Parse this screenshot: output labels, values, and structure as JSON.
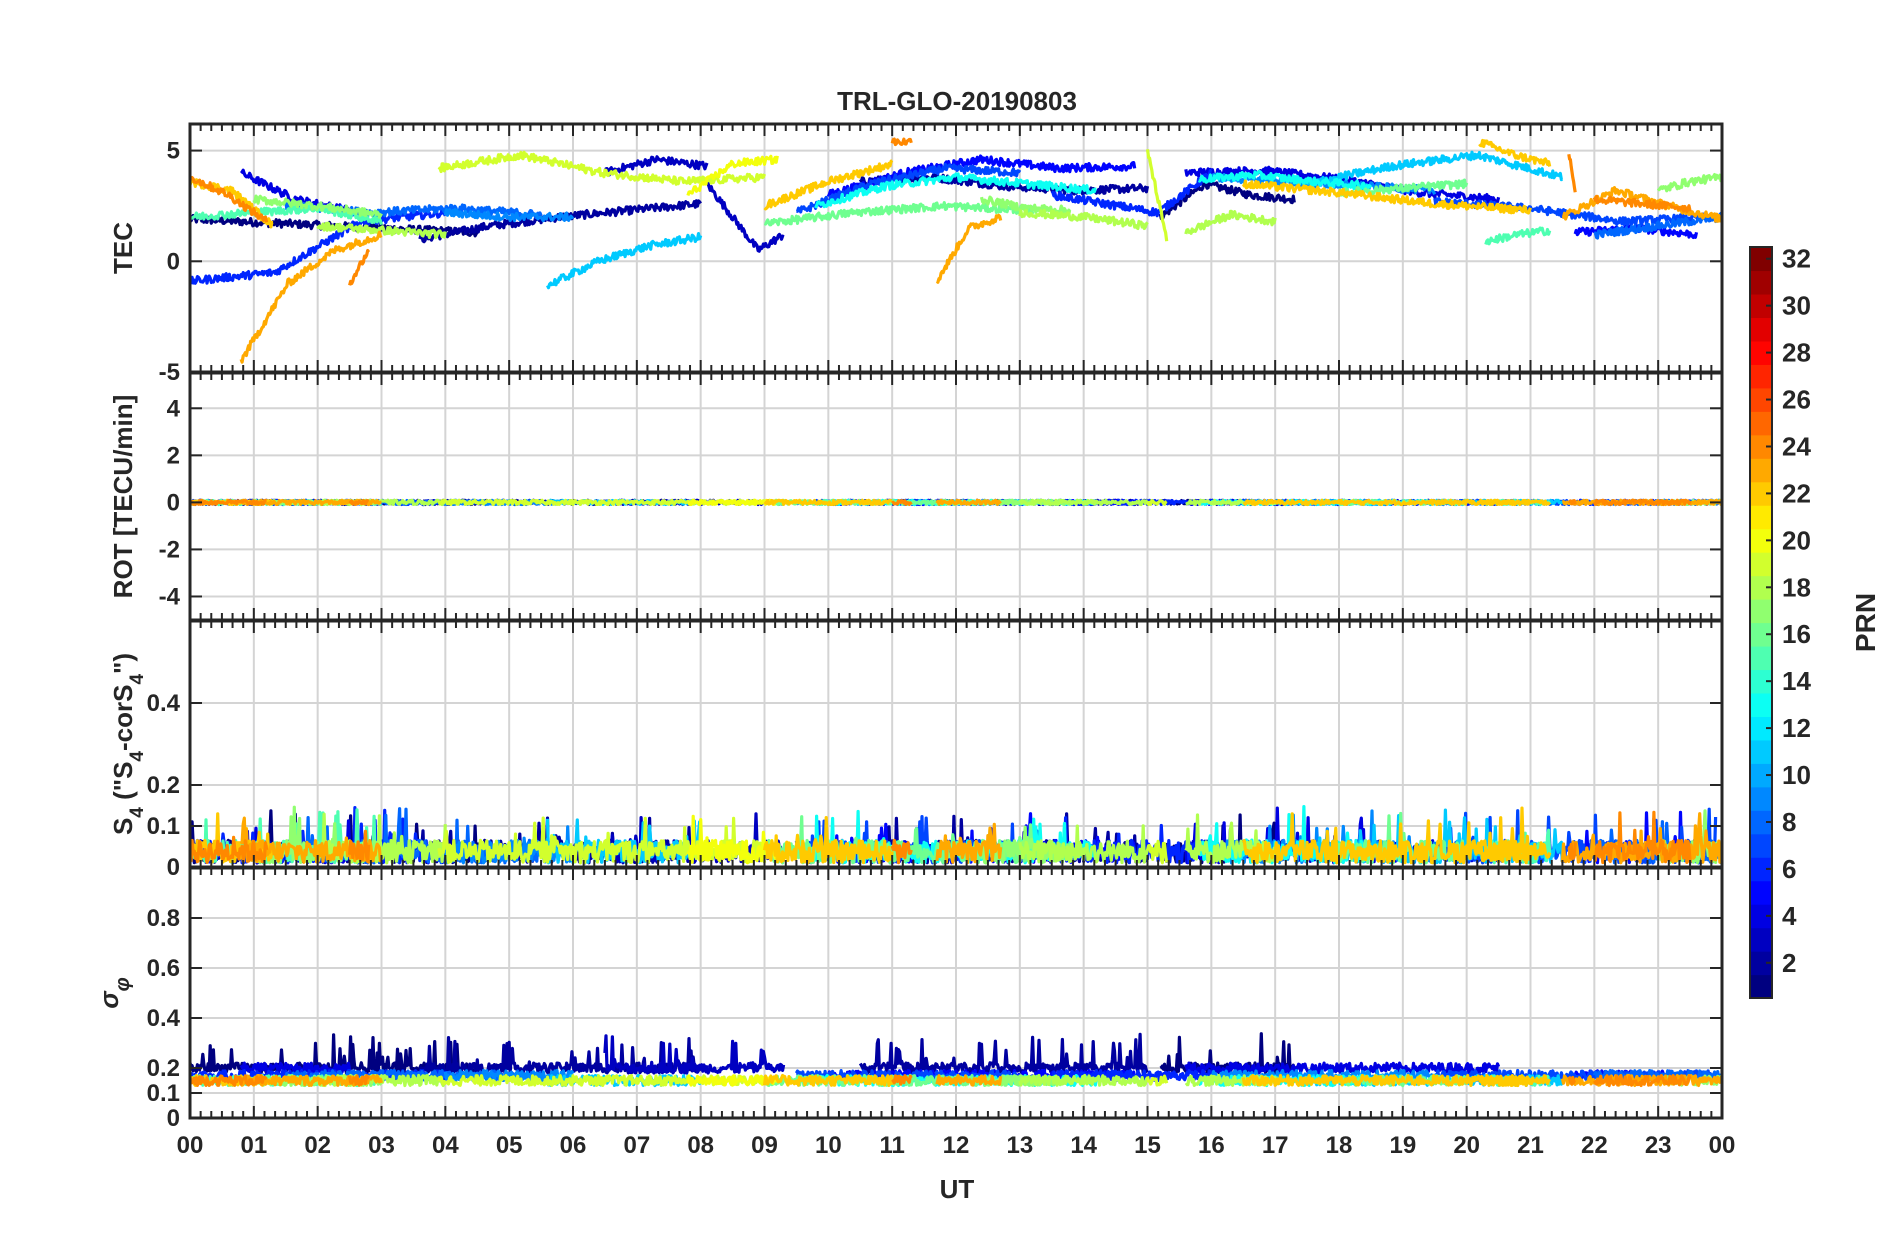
{
  "chart_data": {
    "type": "line",
    "title": "TRL-GLO-20190803",
    "xlabel": "UT",
    "x_tick_labels": [
      "00",
      "01",
      "02",
      "03",
      "04",
      "05",
      "06",
      "07",
      "08",
      "09",
      "10",
      "11",
      "12",
      "13",
      "14",
      "15",
      "16",
      "17",
      "18",
      "19",
      "20",
      "21",
      "22",
      "23",
      "00"
    ],
    "x_range_hours": [
      0,
      24
    ],
    "panels": [
      {
        "id": "tec",
        "ylabel": "TEC",
        "ylim": [
          -5,
          6.2
        ],
        "ytick_values": [
          -5,
          0,
          5
        ],
        "ytick_labels": [
          "-5",
          "0",
          "5"
        ],
        "kind": "tec",
        "grid": true
      },
      {
        "id": "rot",
        "ylabel": "ROT [TECU/min]",
        "ylim": [
          -5,
          5.5
        ],
        "ytick_values": [
          -4,
          -2,
          0,
          2,
          4
        ],
        "ytick_labels": [
          "-4",
          "-2",
          "0",
          "2",
          "4"
        ],
        "kind": "rot",
        "grid": true
      },
      {
        "id": "s4",
        "ylabel_main": "S",
        "ylabel_sub": "4",
        "ylabel_rest": " (\"S",
        "ylabel_sub2": "4",
        "ylabel_rest2": "-corS",
        "ylabel_sub3": "4",
        "ylabel_end": "\")",
        "ylim": [
          0,
          0.6
        ],
        "ytick_values": [
          0,
          0.1,
          0.2,
          0.4
        ],
        "ytick_labels": [
          "0",
          "0.1",
          "0.2",
          "0.4"
        ],
        "kind": "s4",
        "grid": true
      },
      {
        "id": "sigma",
        "ylabel_symbol": "σ",
        "ylabel_sub": "φ",
        "ylim": [
          0,
          1.0
        ],
        "ytick_values": [
          0,
          0.1,
          0.2,
          0.4,
          0.6,
          0.8
        ],
        "ytick_labels": [
          "0",
          "0.1",
          "0.2",
          "0.4",
          "0.6",
          "0.8"
        ],
        "kind": "sigma",
        "grid": true
      }
    ],
    "colorbar": {
      "label": "PRN",
      "range": [
        1,
        32
      ],
      "tick_values": [
        2,
        4,
        6,
        8,
        10,
        12,
        14,
        16,
        18,
        20,
        22,
        24,
        26,
        28,
        30,
        32
      ],
      "tick_labels": [
        "2",
        "4",
        "6",
        "8",
        "10",
        "12",
        "14",
        "16",
        "18",
        "20",
        "22",
        "24",
        "26",
        "28",
        "30",
        "32"
      ],
      "colormap": "jet"
    },
    "series": [
      {
        "prn": 1,
        "segments": [
          [
            0.0,
            4.5,
            [
              1.9,
              1.7,
              1.5,
              1.3
            ]
          ],
          [
            15.2,
            17.3,
            [
              2.0,
              3.5,
              3.0,
              2.8
            ]
          ]
        ]
      },
      {
        "prn": 2,
        "segments": [
          [
            3.6,
            8.0,
            [
              1.0,
              1.6,
              2.0,
              2.3,
              2.6
            ]
          ],
          [
            10.5,
            15.0,
            [
              3.6,
              3.8,
              3.4,
              3.2,
              3.3
            ]
          ]
        ]
      },
      {
        "prn": 3,
        "segments": [
          [
            6.5,
            8.1,
            [
              4.0,
              4.6,
              4.3
            ]
          ],
          [
            8.1,
            9.3,
            [
              3.5,
              2.0,
              0.5,
              1.2
            ]
          ]
        ]
      },
      {
        "prn": 4,
        "segments": [
          [
            0.8,
            2.5,
            [
              4.0,
              2.8,
              2.3
            ]
          ],
          [
            15.6,
            20.5,
            [
              4.0,
              4.1,
              3.7,
              3.1,
              2.8
            ]
          ]
        ]
      },
      {
        "prn": 5,
        "segments": [
          [
            10.0,
            14.8,
            [
              3.0,
              4.0,
              4.6,
              4.2,
              4.3
            ]
          ],
          [
            21.7,
            23.6,
            [
              1.3,
              1.5,
              1.2
            ]
          ]
        ]
      },
      {
        "prn": 6,
        "segments": [
          [
            0.0,
            4.0,
            [
              -0.9,
              -0.5,
              1.8,
              2.2
            ]
          ],
          [
            13.5,
            16.0,
            [
              3.0,
              2.6,
              2.2,
              4.0
            ]
          ]
        ]
      },
      {
        "prn": 7,
        "segments": [
          [
            9.5,
            13.0,
            [
              2.2,
              3.5,
              4.2,
              4.0
            ]
          ],
          [
            19.5,
            23.9,
            [
              2.7,
              2.4,
              1.8,
              2.0
            ]
          ]
        ]
      },
      {
        "prn": 8,
        "segments": [
          [
            1.5,
            5.5,
            [
              2.5,
              2.2,
              2.4,
              2.1
            ]
          ],
          [
            22.0,
            24.0,
            [
              1.2,
              1.6,
              2.0
            ]
          ]
        ]
      },
      {
        "prn": 9,
        "segments": [
          [
            4.0,
            6.0,
            [
              2.2,
              2.0,
              2.0
            ]
          ],
          [
            16.0,
            19.5,
            [
              3.8,
              3.6,
              3.4,
              3.2
            ]
          ]
        ]
      },
      {
        "prn": 11,
        "segments": [
          [
            5.6,
            8.0,
            [
              -1.1,
              0.0,
              0.7,
              1.1
            ]
          ],
          [
            17.5,
            21.5,
            [
              3.5,
              4.3,
              4.8,
              3.8
            ]
          ]
        ]
      },
      {
        "prn": 13,
        "segments": [
          [
            9.8,
            14.2,
            [
              2.5,
              3.4,
              3.8,
              3.5,
              3.2
            ]
          ],
          [
            15.8,
            18.5,
            [
              3.7,
              3.9,
              3.6,
              3.4
            ]
          ]
        ]
      },
      {
        "prn": 15,
        "segments": [
          [
            0.0,
            3.0,
            [
              2.0,
              2.2,
              2.4,
              1.8
            ]
          ],
          [
            20.3,
            21.3,
            [
              0.9,
              1.2,
              1.4
            ]
          ]
        ]
      },
      {
        "prn": 16,
        "segments": [
          [
            9.0,
            13.2,
            [
              1.7,
              2.2,
              2.5,
              2.3
            ]
          ],
          [
            18.0,
            20.0,
            [
              3.1,
              3.3,
              3.5
            ]
          ]
        ]
      },
      {
        "prn": 17,
        "segments": [
          [
            1.0,
            3.0,
            [
              2.8,
              2.5,
              2.1
            ]
          ],
          [
            12.4,
            13.8,
            [
              2.8,
              2.4,
              2.3
            ]
          ],
          [
            23.0,
            24.0,
            [
              3.2,
              3.6,
              3.8
            ]
          ]
        ]
      },
      {
        "prn": 18,
        "segments": [
          [
            2.0,
            4.0,
            [
              1.6,
              1.4,
              1.2
            ]
          ],
          [
            13.0,
            15.0,
            [
              2.2,
              2.0,
              1.6
            ]
          ],
          [
            15.6,
            17.0,
            [
              1.3,
              2.1,
              1.8
            ]
          ]
        ]
      },
      {
        "prn": 19,
        "segments": [
          [
            3.9,
            9.0,
            [
              4.2,
              4.8,
              4.0,
              3.6,
              3.8
            ]
          ],
          [
            15.0,
            15.3,
            [
              5.0,
              1.0
            ]
          ]
        ]
      },
      {
        "prn": 20,
        "segments": [
          [
            7.8,
            9.2,
            [
              3.0,
              4.4,
              4.6
            ]
          ]
        ]
      },
      {
        "prn": 22,
        "segments": [
          [
            0.0,
            1.3,
            [
              3.6,
              3.2,
              1.6
            ]
          ],
          [
            9.0,
            11.0,
            [
              2.5,
              3.6,
              4.4
            ]
          ],
          [
            16.5,
            21.0,
            [
              3.5,
              3.1,
              2.6,
              2.3
            ]
          ],
          [
            20.2,
            21.3,
            [
              5.4,
              4.8,
              4.4
            ]
          ]
        ]
      },
      {
        "prn": 23,
        "segments": [
          [
            0.8,
            3.0,
            [
              -4.5,
              -1.0,
              0.5,
              1.2
            ]
          ],
          [
            11.7,
            12.7,
            [
              -0.9,
              1.5,
              2.0
            ]
          ],
          [
            21.5,
            24.0,
            [
              2.0,
              3.2,
              2.5,
              1.9
            ]
          ]
        ]
      },
      {
        "prn": 24,
        "segments": [
          [
            0.0,
            1.2,
            [
              3.8,
              3.0,
              1.8
            ]
          ],
          [
            2.5,
            2.8,
            [
              -1.0,
              0.5
            ]
          ],
          [
            11.0,
            11.3,
            [
              5.4,
              5.4
            ]
          ],
          [
            21.6,
            21.7,
            [
              5.0,
              3.2
            ]
          ],
          [
            22.0,
            23.5,
            [
              2.8,
              2.6,
              2.4
            ]
          ]
        ]
      }
    ]
  }
}
